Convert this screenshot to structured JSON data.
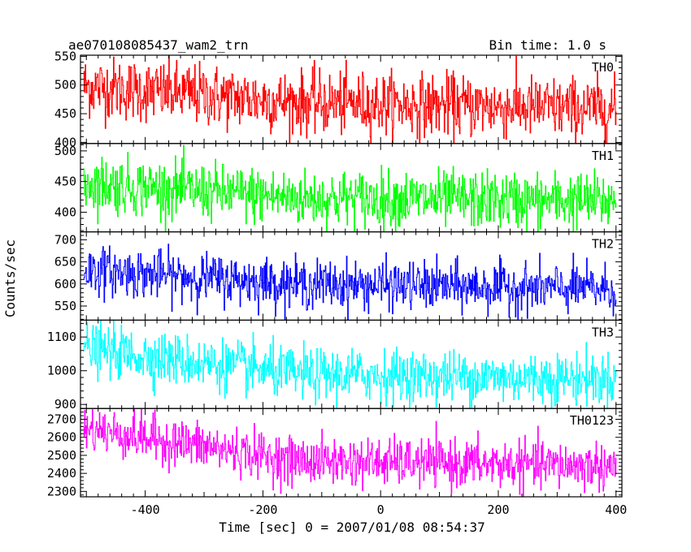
{
  "header": {
    "title": "ae070108085437_wam2_trn",
    "bin_time": "Bin time: 1.0 s"
  },
  "chart_data": {
    "type": "line",
    "xlabel": "Time [sec] 0 = 2007/01/08 08:54:37",
    "ylabel": "Counts/sec",
    "x_range": [
      -510,
      410
    ],
    "x_ticks": [
      -400,
      -200,
      0,
      200,
      400
    ],
    "sampling": {
      "start": -505,
      "end": 400,
      "step": 1
    },
    "series": [
      {
        "name": "TH0",
        "color": "#ff0000",
        "ylim": [
          398,
          552
        ],
        "y_ticks": [
          400,
          450,
          500,
          550
        ],
        "trend_start": 498,
        "trend_mid": 470,
        "trend_end": 458,
        "noise": 27
      },
      {
        "name": "TH1",
        "color": "#00ff00",
        "ylim": [
          368,
          512
        ],
        "y_ticks": [
          400,
          450,
          500
        ],
        "trend_start": 448,
        "trend_mid": 423,
        "trend_end": 418,
        "noise": 23
      },
      {
        "name": "TH2",
        "color": "#0000ff",
        "ylim": [
          518,
          718
        ],
        "y_ticks": [
          550,
          600,
          650,
          700
        ],
        "trend_start": 632,
        "trend_mid": 600,
        "trend_end": 588,
        "noise": 27
      },
      {
        "name": "TH3",
        "color": "#00ffff",
        "ylim": [
          888,
          1150
        ],
        "y_ticks": [
          900,
          1000,
          1100
        ],
        "trend_start": 1065,
        "trend_mid": 990,
        "trend_end": 975,
        "noise": 38
      },
      {
        "name": "TH0123",
        "color": "#ff00ff",
        "ylim": [
          2270,
          2760
        ],
        "y_ticks": [
          2300,
          2400,
          2500,
          2600,
          2700
        ],
        "trend_start": 2650,
        "trend_mid": 2470,
        "trend_end": 2440,
        "noise": 65
      }
    ]
  }
}
